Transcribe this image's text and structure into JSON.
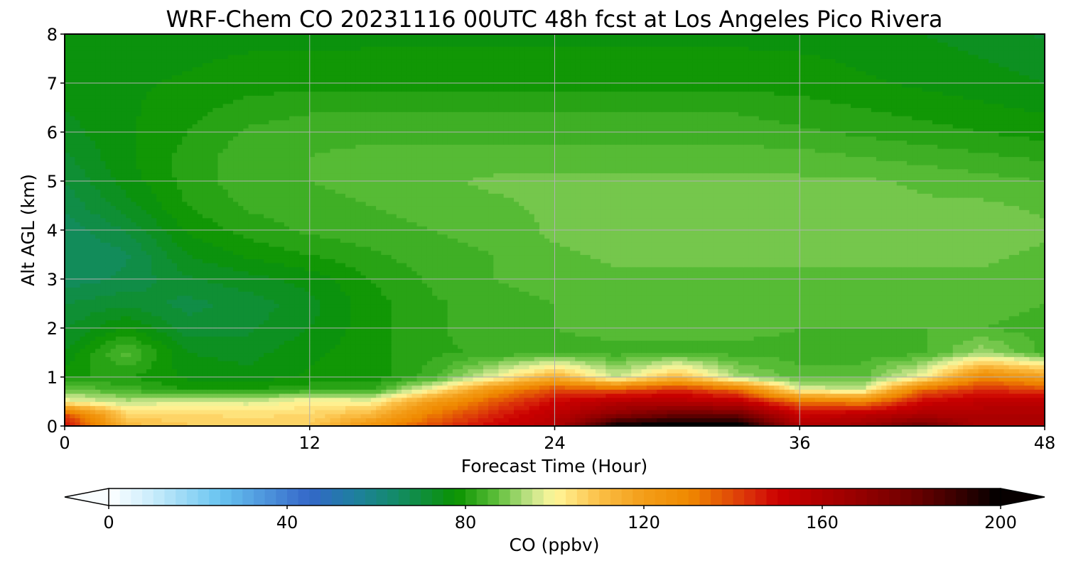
{
  "chart_data": {
    "type": "heatmap",
    "title": "WRF-Chem CO  20231116 00UTC 48h fcst at Los Angeles Pico Rivera",
    "xlabel": "Forecast Time (Hour)",
    "ylabel": "Alt AGL (km)",
    "xlim": [
      0,
      48
    ],
    "ylim": [
      0,
      8
    ],
    "xticks": [
      0,
      12,
      24,
      36,
      48
    ],
    "yticks": [
      0,
      1,
      2,
      3,
      4,
      5,
      6,
      7,
      8
    ],
    "grid": true,
    "x": [
      0,
      3,
      6,
      9,
      12,
      15,
      18,
      21,
      24,
      27,
      30,
      33,
      36,
      39,
      42,
      45,
      48
    ],
    "y": [
      0,
      0.25,
      0.5,
      0.75,
      1,
      1.5,
      2,
      2.5,
      3,
      3.5,
      4,
      4.5,
      5,
      5.5,
      6,
      6.5,
      7,
      7.5,
      8
    ],
    "values": [
      [
        150,
        112,
        108,
        108,
        108,
        125,
        140,
        150,
        158,
        200,
        205,
        205,
        160,
        165,
        180,
        160,
        160
      ],
      [
        140,
        106,
        105,
        104,
        105,
        112,
        132,
        145,
        155,
        170,
        180,
        178,
        150,
        155,
        160,
        160,
        160
      ],
      [
        100,
        94,
        98,
        96,
        102,
        100,
        122,
        138,
        150,
        158,
        158,
        155,
        135,
        130,
        150,
        155,
        155
      ],
      [
        88,
        84,
        80,
        80,
        82,
        82,
        100,
        125,
        140,
        138,
        145,
        135,
        98,
        95,
        135,
        145,
        140
      ],
      [
        80,
        80,
        77,
        76,
        78,
        78,
        84,
        98,
        115,
        95,
        112,
        92,
        86,
        86,
        100,
        130,
        120
      ],
      [
        75,
        86,
        75,
        74,
        77,
        79,
        82,
        83,
        84,
        84,
        84,
        84,
        84,
        84,
        84,
        92,
        84
      ],
      [
        72,
        78,
        71,
        72,
        75,
        79,
        82,
        84,
        85,
        86,
        86,
        86,
        85,
        85,
        85,
        85,
        84
      ],
      [
        70,
        72,
        69,
        71,
        74,
        79,
        82,
        84,
        85,
        86,
        86,
        86,
        86,
        86,
        86,
        86,
        85
      ],
      [
        66,
        68,
        72,
        74,
        76,
        80,
        83,
        85,
        86,
        87,
        87,
        87,
        87,
        87,
        87,
        87,
        86
      ],
      [
        65,
        67,
        75,
        78,
        80,
        82,
        84,
        85,
        87,
        88,
        88,
        88,
        88,
        88,
        88,
        88,
        87
      ],
      [
        66,
        70,
        78,
        81,
        83,
        84,
        85,
        86,
        88,
        89,
        89,
        89,
        89,
        89,
        89,
        89,
        88
      ],
      [
        68,
        74,
        80,
        83,
        84,
        85,
        86,
        87,
        88,
        89,
        89,
        89,
        89,
        89,
        88,
        88,
        87
      ],
      [
        70,
        76,
        81,
        84,
        85,
        86,
        87,
        88,
        88,
        88,
        88,
        88,
        88,
        88,
        87,
        86,
        85
      ],
      [
        72,
        77,
        81,
        84,
        85,
        86,
        86,
        86,
        86,
        86,
        86,
        86,
        86,
        85,
        84,
        83,
        82
      ],
      [
        74,
        77,
        80,
        83,
        84,
        84,
        84,
        84,
        84,
        84,
        84,
        84,
        83,
        82,
        81,
        80,
        79
      ],
      [
        75,
        77,
        79,
        81,
        82,
        82,
        82,
        82,
        82,
        82,
        82,
        82,
        81,
        80,
        79,
        78,
        77
      ],
      [
        76,
        77,
        78,
        79,
        79,
        79,
        79,
        79,
        79,
        79,
        79,
        79,
        79,
        78,
        77,
        76,
        75
      ],
      [
        76,
        76,
        77,
        78,
        78,
        78,
        78,
        78,
        78,
        78,
        78,
        78,
        78,
        77,
        76,
        75,
        74
      ],
      [
        75,
        75,
        76,
        76,
        76,
        77,
        77,
        77,
        77,
        77,
        77,
        77,
        76,
        76,
        75,
        74,
        72
      ]
    ],
    "colorbar": {
      "label": "CO  (ppbv)",
      "min": 0,
      "max": 200,
      "step": 2.5,
      "ticks": [
        0,
        40,
        80,
        120,
        160,
        200
      ],
      "extend": "both",
      "colors": [
        {
          "v": 0,
          "c": "#ffffff"
        },
        {
          "v": 10,
          "c": "#c8ecfb"
        },
        {
          "v": 25,
          "c": "#68c4f0"
        },
        {
          "v": 45,
          "c": "#3467c9"
        },
        {
          "v": 55,
          "c": "#1e7fa0"
        },
        {
          "v": 65,
          "c": "#138b64"
        },
        {
          "v": 78,
          "c": "#0a9300"
        },
        {
          "v": 87,
          "c": "#5dbf3a"
        },
        {
          "v": 95,
          "c": "#c9e58c"
        },
        {
          "v": 100,
          "c": "#fff79a"
        },
        {
          "v": 110,
          "c": "#fbbf46"
        },
        {
          "v": 120,
          "c": "#f39d18"
        },
        {
          "v": 130,
          "c": "#f08a00"
        },
        {
          "v": 145,
          "c": "#d8260a"
        },
        {
          "v": 150,
          "c": "#cc0000"
        },
        {
          "v": 165,
          "c": "#a00000"
        },
        {
          "v": 180,
          "c": "#6e0000"
        },
        {
          "v": 190,
          "c": "#3a0000"
        },
        {
          "v": 200,
          "c": "#000000"
        }
      ]
    }
  }
}
